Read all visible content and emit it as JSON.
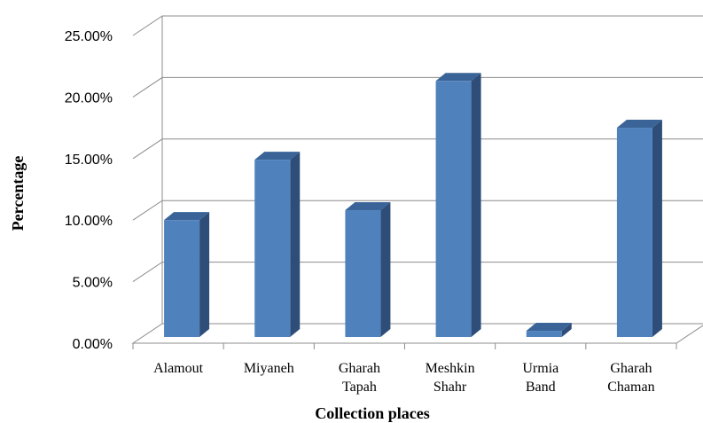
{
  "chart_data": {
    "type": "bar",
    "style": "3d-column",
    "categories": [
      [
        "Alamout"
      ],
      [
        "Miyaneh"
      ],
      [
        "Gharah",
        "Tapah"
      ],
      [
        "Meshkin",
        "Shahr"
      ],
      [
        "Urmia",
        "Band"
      ],
      [
        "Gharah",
        "Chaman"
      ]
    ],
    "values": [
      9.5,
      14.4,
      10.3,
      20.8,
      0.5,
      17.0
    ],
    "value_unit": "%",
    "xlabel": "Collection places",
    "ylabel": "Percentage",
    "ylim": [
      0,
      25
    ],
    "yticks": [
      "0.00%",
      "5.00%",
      "10.00%",
      "15.00%",
      "20.00%",
      "25.00%"
    ],
    "grid": true,
    "legend": "none",
    "colors": {
      "bar_front": "#4f81bd",
      "bar_side": "#2e4d79",
      "bar_top": "#3a6497",
      "grid": "#8c8c8c"
    }
  }
}
